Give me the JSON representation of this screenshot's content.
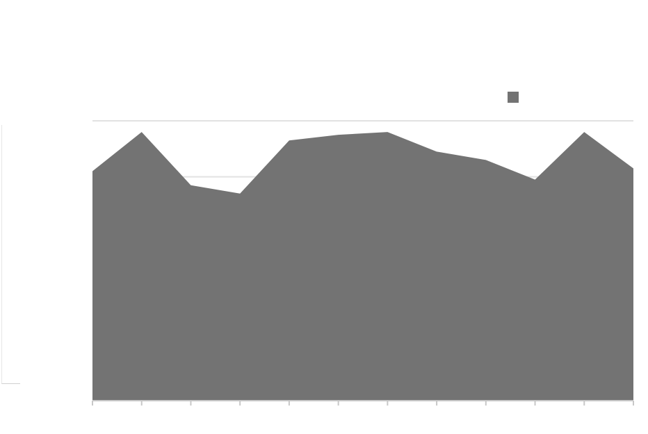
{
  "title": "",
  "subtitle": "",
  "colors": {
    "series": "#737373",
    "grid": "#e2e2e2",
    "axis": "#c8c8c8",
    "background": "#ffffff"
  },
  "legend": {
    "position": "top-right"
  },
  "chart_data": {
    "type": "area",
    "title": "",
    "subtitle": "",
    "xlabel": "",
    "ylabel": "",
    "categories": [
      "",
      "",
      "",
      "",
      "",
      "",
      "",
      "",
      "",
      "",
      "",
      ""
    ],
    "x": [
      1,
      2,
      3,
      4,
      5,
      6,
      7,
      8,
      9,
      10,
      11,
      12
    ],
    "series": [
      {
        "values": [
          82,
          96,
          77,
          74,
          93,
          95,
          96,
          89,
          86,
          79,
          96,
          83
        ]
      }
    ],
    "ylim": [
      0,
      100
    ],
    "yticks": [
      0,
      20,
      40,
      60,
      80,
      100
    ],
    "ytick_labels": [
      "",
      "",
      "",
      "",
      "",
      ""
    ],
    "grid": true,
    "legend_position": "top-right"
  }
}
